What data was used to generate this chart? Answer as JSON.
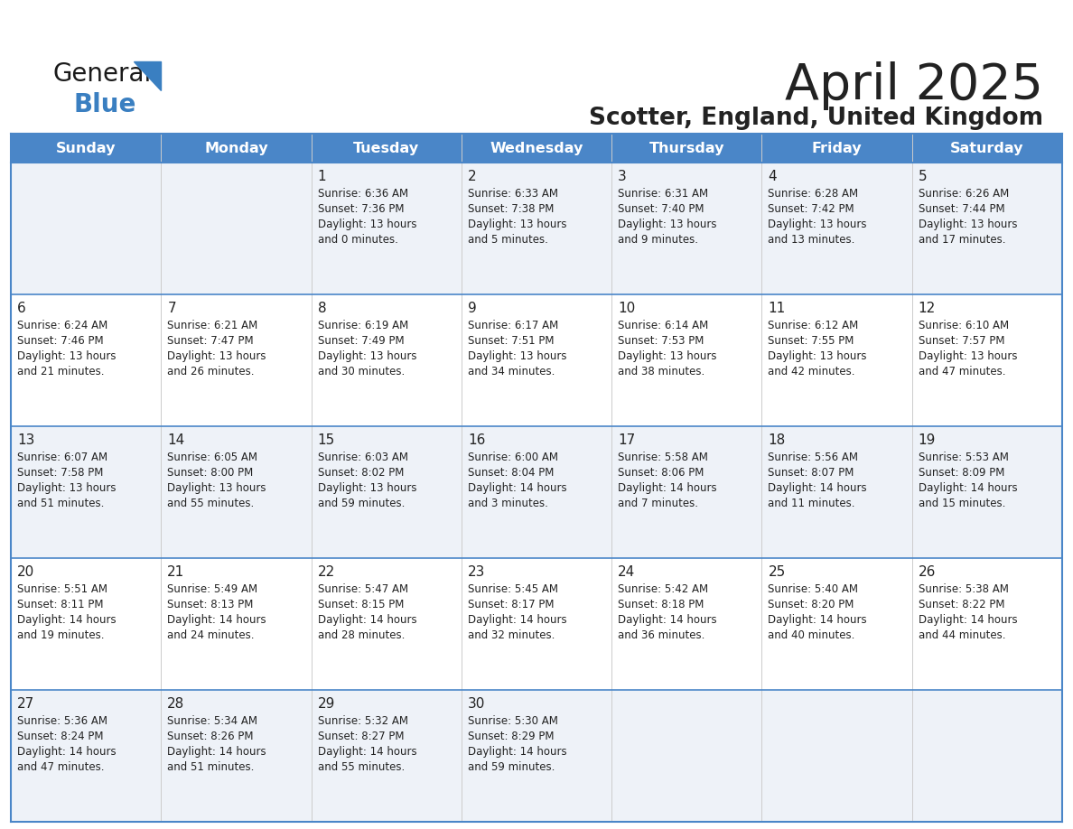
{
  "title": "April 2025",
  "subtitle": "Scotter, England, United Kingdom",
  "header_color": "#4a86c8",
  "header_text_color": "#ffffff",
  "border_color": "#4a86c8",
  "row_bg_odd": "#eef2f8",
  "row_bg_even": "#ffffff",
  "text_color": "#222222",
  "day_names": [
    "Sunday",
    "Monday",
    "Tuesday",
    "Wednesday",
    "Thursday",
    "Friday",
    "Saturday"
  ],
  "logo_general_color": "#1a1a1a",
  "logo_blue_color": "#3a7fc1",
  "logo_triangle_color": "#3a7fc1",
  "calendar": [
    [
      {
        "day": "",
        "info": ""
      },
      {
        "day": "",
        "info": ""
      },
      {
        "day": "1",
        "info": "Sunrise: 6:36 AM\nSunset: 7:36 PM\nDaylight: 13 hours\nand 0 minutes."
      },
      {
        "day": "2",
        "info": "Sunrise: 6:33 AM\nSunset: 7:38 PM\nDaylight: 13 hours\nand 5 minutes."
      },
      {
        "day": "3",
        "info": "Sunrise: 6:31 AM\nSunset: 7:40 PM\nDaylight: 13 hours\nand 9 minutes."
      },
      {
        "day": "4",
        "info": "Sunrise: 6:28 AM\nSunset: 7:42 PM\nDaylight: 13 hours\nand 13 minutes."
      },
      {
        "day": "5",
        "info": "Sunrise: 6:26 AM\nSunset: 7:44 PM\nDaylight: 13 hours\nand 17 minutes."
      }
    ],
    [
      {
        "day": "6",
        "info": "Sunrise: 6:24 AM\nSunset: 7:46 PM\nDaylight: 13 hours\nand 21 minutes."
      },
      {
        "day": "7",
        "info": "Sunrise: 6:21 AM\nSunset: 7:47 PM\nDaylight: 13 hours\nand 26 minutes."
      },
      {
        "day": "8",
        "info": "Sunrise: 6:19 AM\nSunset: 7:49 PM\nDaylight: 13 hours\nand 30 minutes."
      },
      {
        "day": "9",
        "info": "Sunrise: 6:17 AM\nSunset: 7:51 PM\nDaylight: 13 hours\nand 34 minutes."
      },
      {
        "day": "10",
        "info": "Sunrise: 6:14 AM\nSunset: 7:53 PM\nDaylight: 13 hours\nand 38 minutes."
      },
      {
        "day": "11",
        "info": "Sunrise: 6:12 AM\nSunset: 7:55 PM\nDaylight: 13 hours\nand 42 minutes."
      },
      {
        "day": "12",
        "info": "Sunrise: 6:10 AM\nSunset: 7:57 PM\nDaylight: 13 hours\nand 47 minutes."
      }
    ],
    [
      {
        "day": "13",
        "info": "Sunrise: 6:07 AM\nSunset: 7:58 PM\nDaylight: 13 hours\nand 51 minutes."
      },
      {
        "day": "14",
        "info": "Sunrise: 6:05 AM\nSunset: 8:00 PM\nDaylight: 13 hours\nand 55 minutes."
      },
      {
        "day": "15",
        "info": "Sunrise: 6:03 AM\nSunset: 8:02 PM\nDaylight: 13 hours\nand 59 minutes."
      },
      {
        "day": "16",
        "info": "Sunrise: 6:00 AM\nSunset: 8:04 PM\nDaylight: 14 hours\nand 3 minutes."
      },
      {
        "day": "17",
        "info": "Sunrise: 5:58 AM\nSunset: 8:06 PM\nDaylight: 14 hours\nand 7 minutes."
      },
      {
        "day": "18",
        "info": "Sunrise: 5:56 AM\nSunset: 8:07 PM\nDaylight: 14 hours\nand 11 minutes."
      },
      {
        "day": "19",
        "info": "Sunrise: 5:53 AM\nSunset: 8:09 PM\nDaylight: 14 hours\nand 15 minutes."
      }
    ],
    [
      {
        "day": "20",
        "info": "Sunrise: 5:51 AM\nSunset: 8:11 PM\nDaylight: 14 hours\nand 19 minutes."
      },
      {
        "day": "21",
        "info": "Sunrise: 5:49 AM\nSunset: 8:13 PM\nDaylight: 14 hours\nand 24 minutes."
      },
      {
        "day": "22",
        "info": "Sunrise: 5:47 AM\nSunset: 8:15 PM\nDaylight: 14 hours\nand 28 minutes."
      },
      {
        "day": "23",
        "info": "Sunrise: 5:45 AM\nSunset: 8:17 PM\nDaylight: 14 hours\nand 32 minutes."
      },
      {
        "day": "24",
        "info": "Sunrise: 5:42 AM\nSunset: 8:18 PM\nDaylight: 14 hours\nand 36 minutes."
      },
      {
        "day": "25",
        "info": "Sunrise: 5:40 AM\nSunset: 8:20 PM\nDaylight: 14 hours\nand 40 minutes."
      },
      {
        "day": "26",
        "info": "Sunrise: 5:38 AM\nSunset: 8:22 PM\nDaylight: 14 hours\nand 44 minutes."
      }
    ],
    [
      {
        "day": "27",
        "info": "Sunrise: 5:36 AM\nSunset: 8:24 PM\nDaylight: 14 hours\nand 47 minutes."
      },
      {
        "day": "28",
        "info": "Sunrise: 5:34 AM\nSunset: 8:26 PM\nDaylight: 14 hours\nand 51 minutes."
      },
      {
        "day": "29",
        "info": "Sunrise: 5:32 AM\nSunset: 8:27 PM\nDaylight: 14 hours\nand 55 minutes."
      },
      {
        "day": "30",
        "info": "Sunrise: 5:30 AM\nSunset: 8:29 PM\nDaylight: 14 hours\nand 59 minutes."
      },
      {
        "day": "",
        "info": ""
      },
      {
        "day": "",
        "info": ""
      },
      {
        "day": "",
        "info": ""
      }
    ]
  ]
}
